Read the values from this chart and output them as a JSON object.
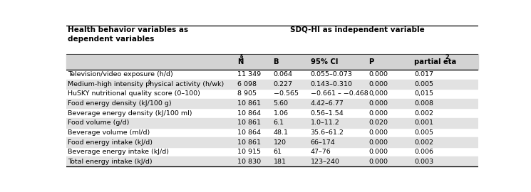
{
  "title_left": "Health behavior variables as\ndependent variables",
  "title_right": "SDQ-HI as independent variable",
  "col_headers_main": [
    "N",
    "B",
    "95% CI",
    "P",
    "partial eta"
  ],
  "col_headers_super": [
    "§",
    "",
    "",
    "",
    "2"
  ],
  "rows": [
    [
      "Television/video exposure (h/d)",
      "11 349",
      "0.064",
      "0.055–0.073",
      "0.000",
      "0.017"
    ],
    [
      "Medium-high intensity physical activity (h/wk)",
      "6 098",
      "0.227",
      "0.143–0.310",
      "0.000",
      "0.005"
    ],
    [
      "HuSKY nutritional quality score (0–100)",
      "8 905",
      "−0.565",
      "−0.661 – −0.468",
      "0,000",
      "0,015"
    ],
    [
      "Food energy density (kJ/100 g)",
      "10 861",
      "5.60",
      "4.42–6.77",
      "0.000",
      "0.008"
    ],
    [
      "Beverage energy density (kJ/100 ml)",
      "10 864",
      "1.06",
      "0.56–1.54",
      "0.000",
      "0.002"
    ],
    [
      "Food volume (g/d)",
      "10 861",
      "6.1",
      "1.0–11.2",
      "0.020",
      "0.001"
    ],
    [
      "Beverage volume (ml/d)",
      "10 864",
      "48.1",
      "35.6–61.2",
      "0.000",
      "0.005"
    ],
    [
      "Food energy intake (kJ/d)",
      "10 861",
      "120",
      "66–174",
      "0.000",
      "0.002"
    ],
    [
      "Beverage energy intake (kJ/d)",
      "10 915",
      "61",
      "47–76",
      "0.000",
      "0.006"
    ],
    [
      "Total energy intake (kJ/d)",
      "10 830",
      "181",
      "123–240",
      "0.000",
      "0.003"
    ]
  ],
  "row2_has_super": true,
  "shade_color": "#e2e2e2",
  "header_shade": "#d3d3d3",
  "bg_color": "#ffffff",
  "font_size": 6.8,
  "header_font_size": 7.2,
  "title_font_size": 7.5
}
